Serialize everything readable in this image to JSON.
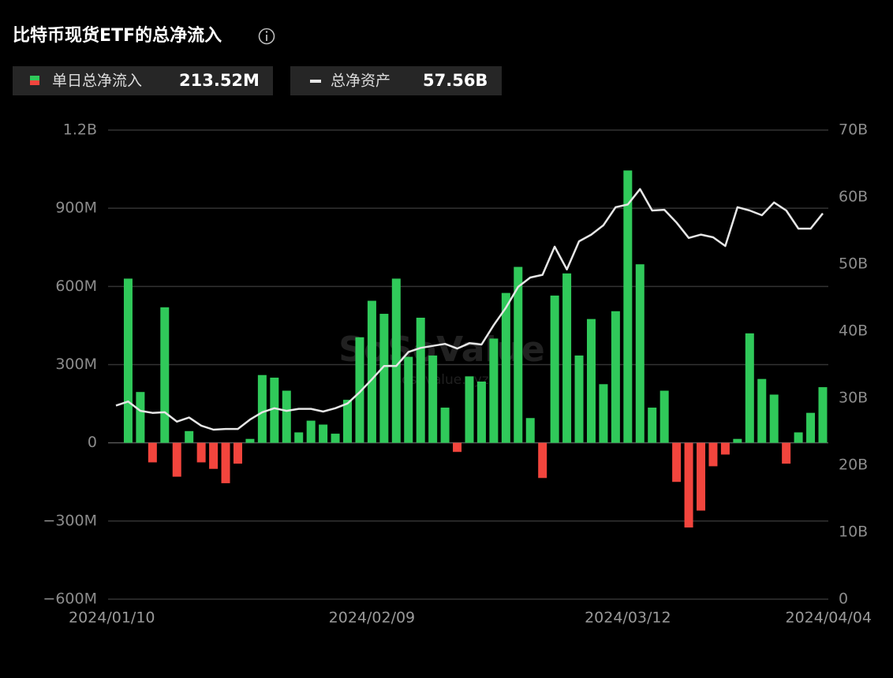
{
  "chart_data": {
    "type": "bar",
    "title": "比特币现货ETF的总净流入",
    "categories": [
      "2024/01/10",
      null,
      null,
      null,
      null,
      null,
      null,
      null,
      null,
      null,
      null,
      null,
      null,
      null,
      null,
      null,
      null,
      null,
      null,
      null,
      null,
      "2024/02/09",
      null,
      null,
      null,
      null,
      null,
      null,
      null,
      null,
      null,
      null,
      null,
      null,
      null,
      null,
      null,
      null,
      null,
      null,
      null,
      null,
      "2024/03/12",
      null,
      null,
      null,
      null,
      null,
      null,
      null,
      null,
      null,
      null,
      null,
      null,
      null,
      null,
      null,
      "2024/04/04"
    ],
    "series": [
      {
        "name": "单日总净流入",
        "summary_label": "213.52M",
        "color": "#30c95a",
        "negative_color": "#f2453d",
        "values": [
          null,
          630,
          195,
          -75,
          520,
          -130,
          45,
          -75,
          -100,
          -155,
          -80,
          15,
          260,
          250,
          200,
          40,
          85,
          70,
          35,
          165,
          405,
          545,
          495,
          630,
          330,
          480,
          335,
          135,
          -35,
          255,
          235,
          400,
          575,
          675,
          95,
          -135,
          565,
          650,
          335,
          475,
          225,
          505,
          1045,
          685,
          135,
          200,
          -150,
          -325,
          -260,
          -90,
          -45,
          15,
          420,
          245,
          185,
          -80,
          40,
          115,
          213.52
        ]
      },
      {
        "name": "总净资产",
        "summary_label": "57.56B",
        "type": "line",
        "axis": "y2",
        "color": "#e6e6e6",
        "values": [
          28.9,
          29.5,
          28.1,
          27.8,
          27.9,
          26.5,
          27.1,
          25.9,
          25.3,
          25.4,
          25.4,
          26.8,
          27.9,
          28.5,
          28.1,
          28.4,
          28.4,
          28.0,
          28.5,
          29.2,
          30.9,
          32.8,
          34.8,
          34.8,
          36.9,
          37.5,
          37.8,
          38.1,
          37.4,
          38.2,
          38.0,
          40.9,
          43.5,
          46.6,
          48.0,
          48.4,
          52.6,
          49.2,
          53.4,
          54.4,
          55.8,
          58.5,
          58.9,
          61.2,
          58.0,
          58.1,
          56.2,
          53.9,
          54.4,
          54.0,
          52.7,
          58.5,
          58.0,
          57.3,
          59.2,
          58.0,
          55.3,
          55.3,
          57.56
        ]
      }
    ],
    "ylim": [
      -600,
      1200
    ],
    "yticks": [
      {
        "value": -600,
        "label": "−600M"
      },
      {
        "value": -300,
        "label": "−300M"
      },
      0,
      {
        "value": 300,
        "label": "300M"
      },
      {
        "value": 600,
        "label": "600M"
      },
      {
        "value": 900,
        "label": "900M"
      },
      {
        "value": 1200,
        "label": "1.2B"
      }
    ],
    "y2lim": [
      0,
      70
    ],
    "y2ticks": [
      0,
      {
        "value": 10,
        "label": "10B"
      },
      {
        "value": 20,
        "label": "20B"
      },
      {
        "value": 30,
        "label": "30B"
      },
      {
        "value": 40,
        "label": "40B"
      },
      {
        "value": 50,
        "label": "50B"
      },
      {
        "value": 60,
        "label": "60B"
      },
      {
        "value": 70,
        "label": "70B"
      }
    ],
    "grid": true
  },
  "watermark": {
    "brand": "SoSoValue",
    "url": "sosovalue.xyz"
  }
}
